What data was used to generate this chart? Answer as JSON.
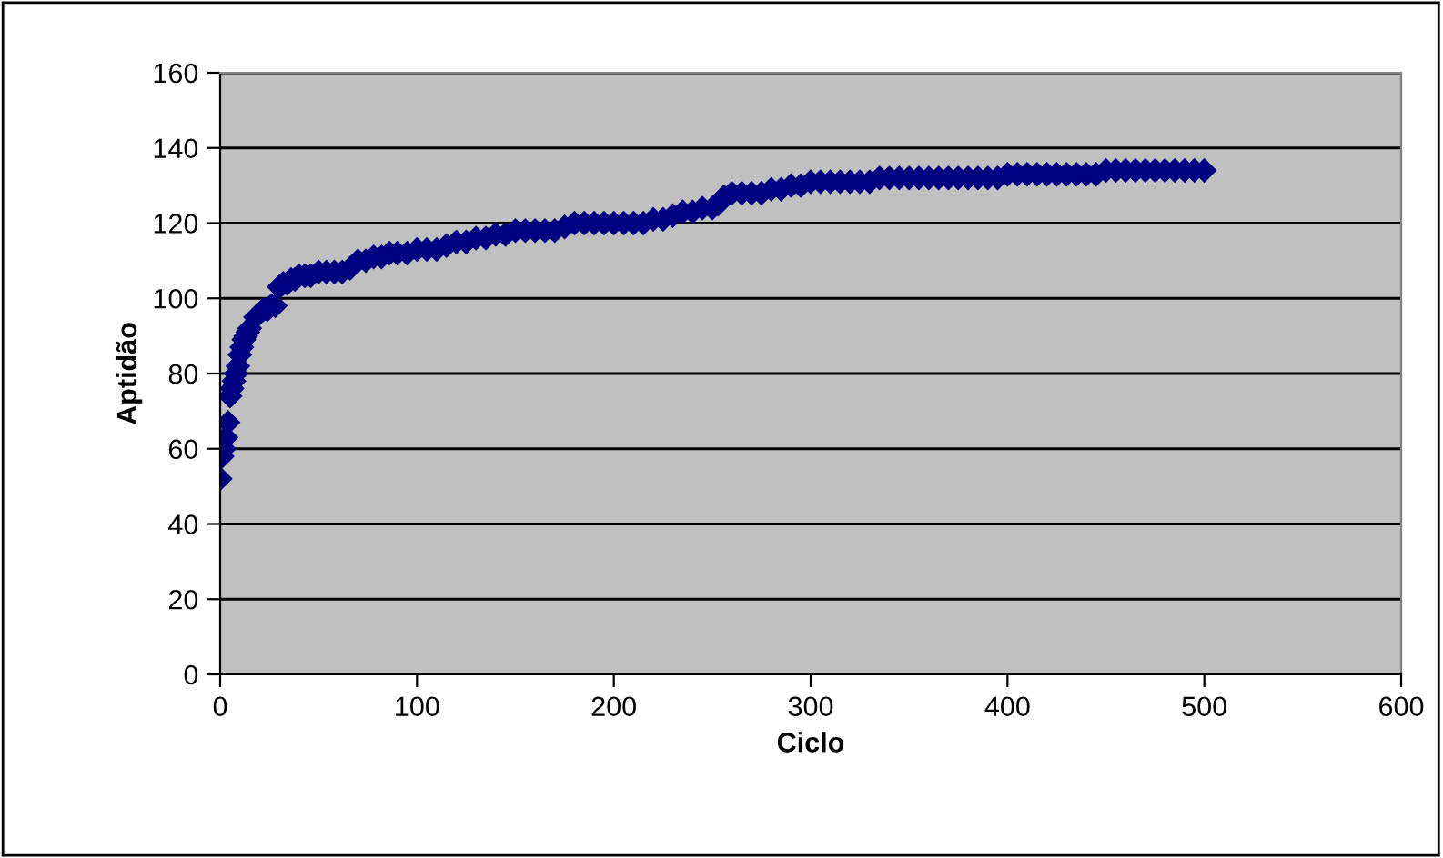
{
  "chart_data": {
    "type": "scatter",
    "xlabel": "Ciclo",
    "ylabel": "Aptidão",
    "x": [
      0,
      1,
      2,
      3,
      4,
      5,
      6,
      7,
      8,
      9,
      10,
      11,
      12,
      13,
      14,
      15,
      18,
      22,
      24,
      26,
      28,
      30,
      32,
      34,
      36,
      38,
      40,
      43,
      46,
      50,
      54,
      58,
      62,
      66,
      70,
      74,
      78,
      82,
      86,
      90,
      95,
      100,
      105,
      110,
      115,
      120,
      125,
      130,
      135,
      140,
      145,
      150,
      155,
      160,
      165,
      170,
      175,
      180,
      185,
      190,
      195,
      200,
      205,
      210,
      215,
      220,
      225,
      230,
      235,
      240,
      245,
      250,
      253,
      256,
      260,
      265,
      270,
      275,
      280,
      285,
      290,
      295,
      300,
      305,
      310,
      315,
      320,
      325,
      330,
      335,
      340,
      345,
      350,
      355,
      360,
      365,
      370,
      375,
      380,
      385,
      390,
      395,
      400,
      405,
      410,
      415,
      420,
      425,
      430,
      435,
      440,
      445,
      450,
      455,
      460,
      465,
      470,
      475,
      480,
      485,
      490,
      495,
      500
    ],
    "series": [
      {
        "color": "#000080",
        "values": [
          52,
          58,
          60,
          63,
          67,
          74,
          76,
          78,
          80,
          82,
          85,
          87,
          89,
          90,
          91,
          92,
          95,
          97,
          97,
          98,
          98,
          103,
          104,
          104,
          105,
          105,
          106,
          106,
          106,
          107,
          107,
          107,
          107,
          108,
          110,
          110,
          111,
          111,
          112,
          112,
          112,
          113,
          113,
          113,
          114,
          115,
          115,
          116,
          116,
          117,
          117,
          118,
          118,
          118,
          118,
          118,
          119,
          120,
          120,
          120,
          120,
          120,
          120,
          120,
          120,
          121,
          121,
          122,
          123,
          123,
          124,
          124,
          125,
          127,
          128,
          128,
          128,
          128,
          129,
          129,
          130,
          130,
          131,
          131,
          131,
          131,
          131,
          131,
          131,
          132,
          132,
          132,
          132,
          132,
          132,
          132,
          132,
          132,
          132,
          132,
          132,
          132,
          133,
          133,
          133,
          133,
          133,
          133,
          133,
          133,
          133,
          133,
          134,
          134,
          134,
          134,
          134,
          134,
          134,
          134,
          134,
          134,
          134
        ]
      }
    ],
    "xlim": [
      0,
      600
    ],
    "xticks": [
      0,
      100,
      200,
      300,
      400,
      500,
      600
    ],
    "ylim": [
      0,
      160
    ],
    "yticks": [
      0,
      20,
      40,
      60,
      80,
      100,
      120,
      140,
      160
    ],
    "grid": "y",
    "marker": "diamond"
  }
}
